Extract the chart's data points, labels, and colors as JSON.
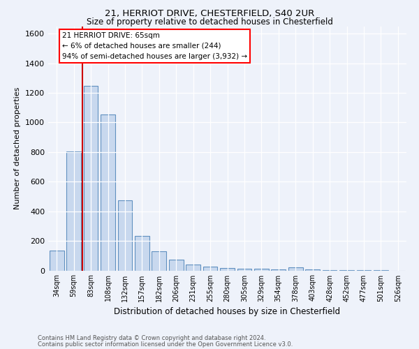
{
  "title1": "21, HERRIOT DRIVE, CHESTERFIELD, S40 2UR",
  "title2": "Size of property relative to detached houses in Chesterfield",
  "xlabel": "Distribution of detached houses by size in Chesterfield",
  "ylabel": "Number of detached properties",
  "categories": [
    "34sqm",
    "59sqm",
    "83sqm",
    "108sqm",
    "132sqm",
    "157sqm",
    "182sqm",
    "206sqm",
    "231sqm",
    "255sqm",
    "280sqm",
    "305sqm",
    "329sqm",
    "354sqm",
    "378sqm",
    "403sqm",
    "428sqm",
    "452sqm",
    "477sqm",
    "501sqm",
    "526sqm"
  ],
  "values": [
    135,
    805,
    1245,
    1055,
    475,
    235,
    130,
    75,
    42,
    25,
    18,
    12,
    10,
    8,
    20,
    5,
    3,
    2,
    1,
    1,
    0
  ],
  "bar_color": "#c8d8ee",
  "bar_edge_color": "#6090c0",
  "red_line_x": 1.5,
  "annotation_text": "21 HERRIOT DRIVE: 65sqm\n← 6% of detached houses are smaller (244)\n94% of semi-detached houses are larger (3,932) →",
  "annotation_box_color": "white",
  "annotation_box_edge": "red",
  "ylim": [
    0,
    1650
  ],
  "yticks": [
    0,
    200,
    400,
    600,
    800,
    1000,
    1200,
    1400,
    1600
  ],
  "footnote1": "Contains HM Land Registry data © Crown copyright and database right 2024.",
  "footnote2": "Contains public sector information licensed under the Open Government Licence v3.0.",
  "bg_color": "#eef2fa"
}
